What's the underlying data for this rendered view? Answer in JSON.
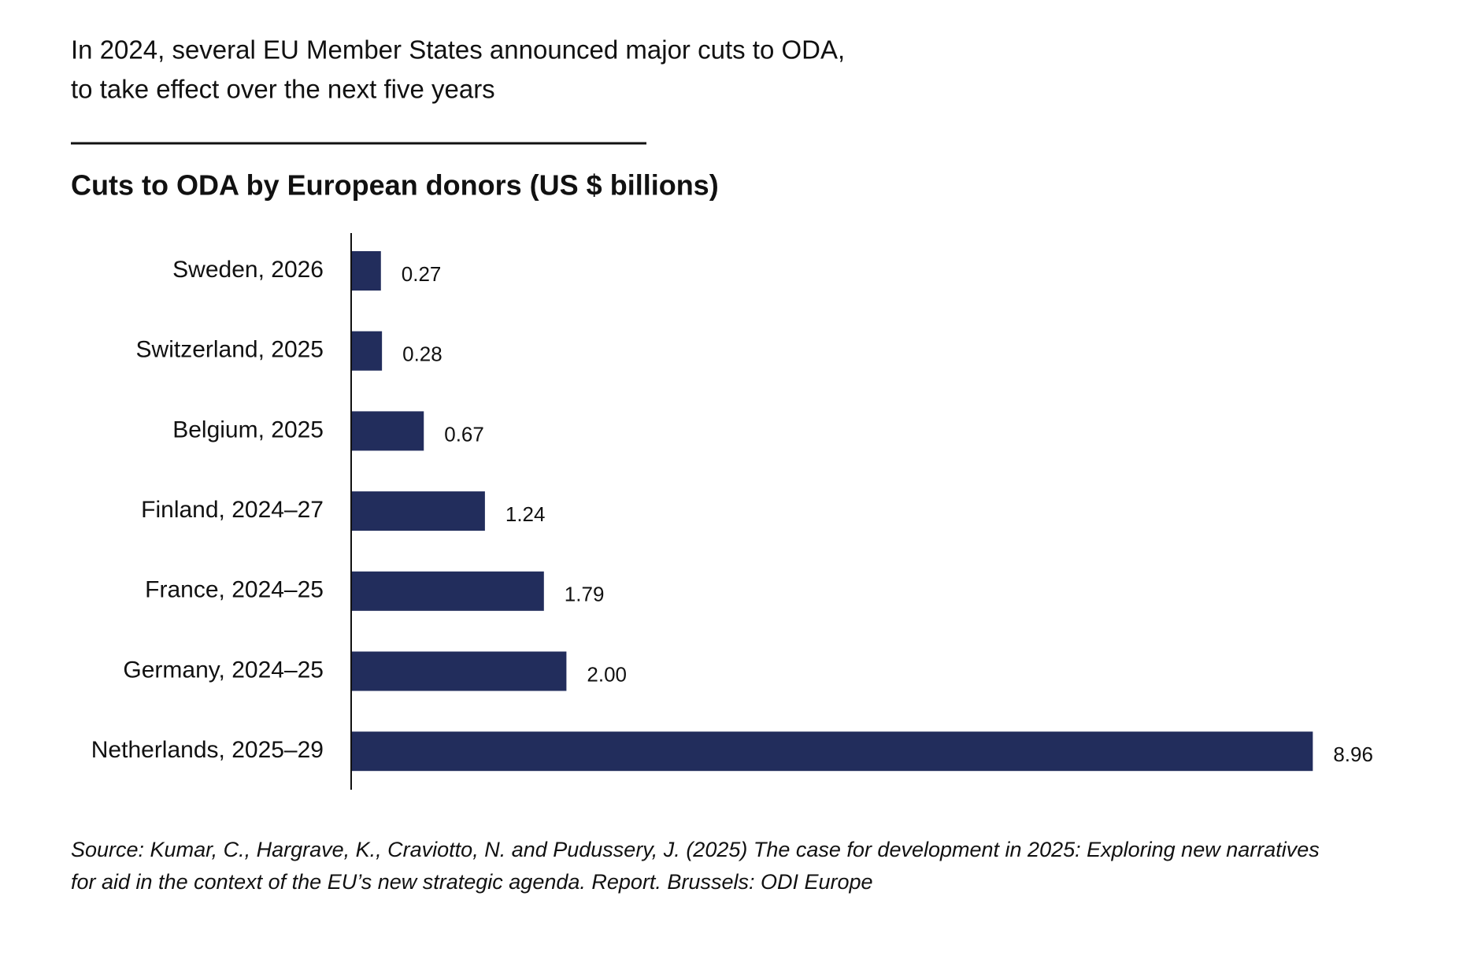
{
  "headline": [
    "In 2024, several EU Member States announced major cuts to ODA,",
    "to take effect over the next five years"
  ],
  "chart_data": {
    "type": "hbar",
    "title": "Cuts to ODA by European donors (US $ billions)",
    "categories": [
      "Sweden, 2026",
      "Switzerland, 2025",
      "Belgium, 2025",
      "Finland, 2024–27",
      "France, 2024–25",
      "Germany, 2024–25",
      "Netherlands, 2025–29"
    ],
    "values": [
      0.27,
      0.28,
      0.67,
      1.24,
      1.79,
      2.0,
      8.96
    ],
    "value_labels": [
      "0.27",
      "0.28",
      "0.67",
      "1.24",
      "1.79",
      "2.00",
      "8.96"
    ],
    "color": "#222d5c"
  },
  "source": [
    "Source: Kumar, C., Hargrave, K., Craviotto, N. and Pudussery, J. (2025) The case for development in 2025: Exploring new narratives",
    "for aid in the context of the EU’s new strategic agenda. Report. Brussels: ODI Europe"
  ]
}
